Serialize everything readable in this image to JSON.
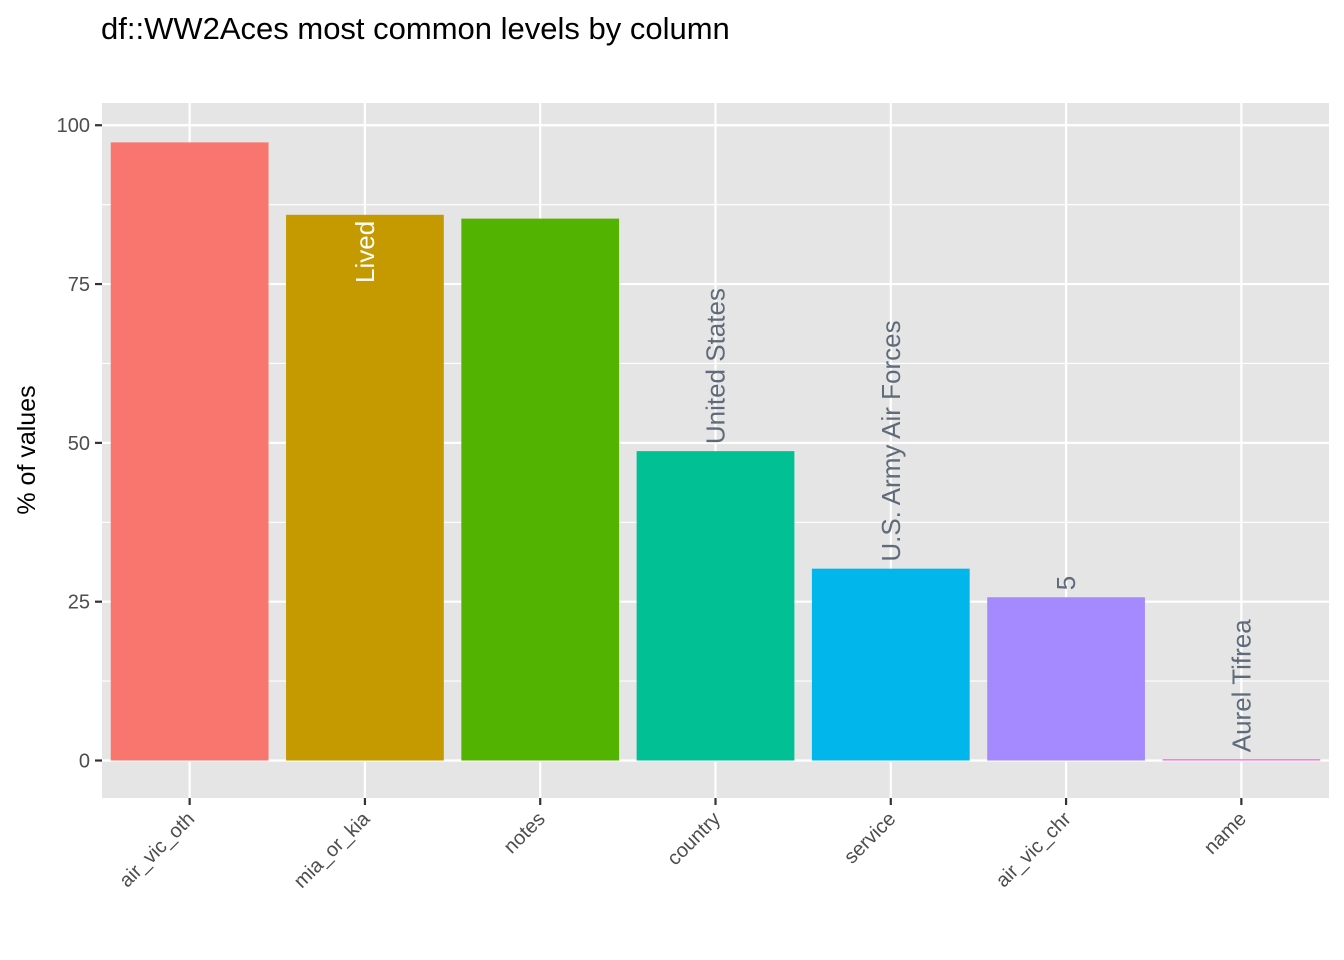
{
  "chart_data": {
    "type": "bar",
    "title": "df::WW2Aces most common levels by column",
    "xlabel": "",
    "ylabel": "% of values",
    "ylim": [
      -5.9,
      103.5
    ],
    "yticks": [
      0,
      25,
      50,
      75,
      100
    ],
    "ytick_labels": [
      "0",
      "25",
      "50",
      "75",
      "100"
    ],
    "grid": true,
    "legend": "none",
    "categories": [
      "air_vic_oth",
      "mia_or_kia",
      "notes",
      "country",
      "service",
      "air_vic_chr",
      "name"
    ],
    "values": [
      97.3,
      85.9,
      85.3,
      48.7,
      30.2,
      25.7,
      0.2
    ],
    "bar_labels": [
      "",
      "Lived",
      "",
      "United States",
      "U.S. Army Air Forces",
      "5",
      "Aurel Tifrea"
    ],
    "colors": [
      "#F8766D",
      "#C49A00",
      "#53B400",
      "#00C094",
      "#00B6EB",
      "#A58AFF",
      "#FB61D7"
    ],
    "label_colors": {
      "inside": "#ffffff",
      "outside": "#5f6b7a"
    },
    "panel_background": "#e5e5e5",
    "grid_color": "#ffffff"
  }
}
